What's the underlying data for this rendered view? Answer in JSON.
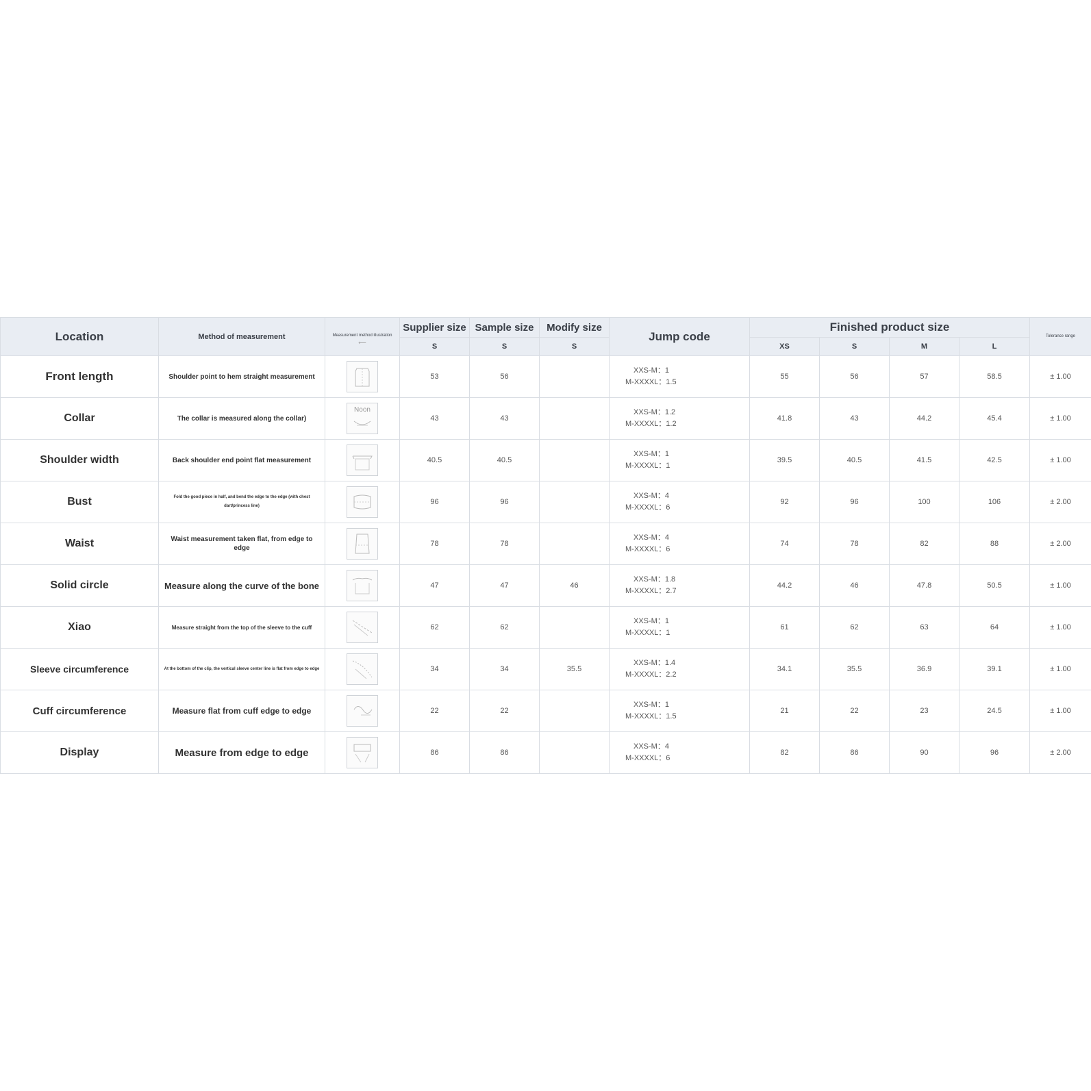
{
  "headers": {
    "location": "Location",
    "method": "Method of measurement",
    "illustration": "Measurement method illustration",
    "supplier": "Supplier size",
    "sample": "Sample size",
    "modify": "Modify size",
    "jump": "Jump code",
    "finished": "Finished product size",
    "tolerance": "Tolerance range",
    "supplier_sub": "S",
    "sample_sub": "S",
    "modify_sub": "S",
    "finished_sizes": [
      "XS",
      "S",
      "M",
      "L"
    ]
  },
  "rows": [
    {
      "location": "Front length",
      "method": "Shoulder point to hem straight measurement",
      "thumb_label": "",
      "supplier": "53",
      "sample": "56",
      "modify": "",
      "jump_a": "XXS-M：1",
      "jump_b": "M-XXXXL：1.5",
      "xs": "55",
      "s": "56",
      "m": "57",
      "l": "58.5",
      "tol": "± 1.00"
    },
    {
      "location": "Collar",
      "method": "The collar is measured along the collar)",
      "thumb_label": "Noon",
      "supplier": "43",
      "sample": "43",
      "modify": "",
      "jump_a": "XXS-M：1.2",
      "jump_b": "M-XXXXL：1.2",
      "xs": "41.8",
      "s": "43",
      "m": "44.2",
      "l": "45.4",
      "tol": "± 1.00"
    },
    {
      "location": "Shoulder width",
      "method": "Back shoulder end point flat measurement",
      "thumb_label": "",
      "supplier": "40.5",
      "sample": "40.5",
      "modify": "",
      "jump_a": "XXS-M：1",
      "jump_b": "M-XXXXL：1",
      "xs": "39.5",
      "s": "40.5",
      "m": "41.5",
      "l": "42.5",
      "tol": "± 1.00"
    },
    {
      "location": "Bust",
      "method": "Fold the good piece in half, and bend the edge to the edge (with chest dart/princess line)",
      "thumb_label": "",
      "supplier": "96",
      "sample": "96",
      "modify": "",
      "jump_a": "XXS-M：4",
      "jump_b": "M-XXXXL：6",
      "xs": "92",
      "s": "96",
      "m": "100",
      "l": "106",
      "tol": "± 2.00"
    },
    {
      "location": "Waist",
      "method": "Waist measurement taken flat, from edge to edge",
      "thumb_label": "",
      "supplier": "78",
      "sample": "78",
      "modify": "",
      "jump_a": "XXS-M：4",
      "jump_b": "M-XXXXL：6",
      "xs": "74",
      "s": "78",
      "m": "82",
      "l": "88",
      "tol": "± 2.00"
    },
    {
      "location": "Solid circle",
      "method": "Measure along the curve of the bone",
      "thumb_label": "",
      "supplier": "47",
      "sample": "47",
      "modify": "46",
      "jump_a": "XXS-M：1.8",
      "jump_b": "M-XXXXL：2.7",
      "xs": "44.2",
      "s": "46",
      "m": "47.8",
      "l": "50.5",
      "tol": "± 1.00"
    },
    {
      "location": "Xiao",
      "method": "Measure straight from the top of the sleeve to the cuff",
      "thumb_label": "",
      "supplier": "62",
      "sample": "62",
      "modify": "",
      "jump_a": "XXS-M：1",
      "jump_b": "M-XXXXL：1",
      "xs": "61",
      "s": "62",
      "m": "63",
      "l": "64",
      "tol": "± 1.00"
    },
    {
      "location": "Sleeve circumference",
      "method": "At the bottom of the clip, the vertical sleeve center line is flat from edge to edge",
      "thumb_label": "",
      "supplier": "34",
      "sample": "34",
      "modify": "35.5",
      "jump_a": "XXS-M：1.4",
      "jump_b": "M-XXXXL：2.2",
      "xs": "34.1",
      "s": "35.5",
      "m": "36.9",
      "l": "39.1",
      "tol": "± 1.00"
    },
    {
      "location": "Cuff circumference",
      "method": "Measure flat from cuff edge to edge",
      "thumb_label": "",
      "supplier": "22",
      "sample": "22",
      "modify": "",
      "jump_a": "XXS-M：1",
      "jump_b": "M-XXXXL：1.5",
      "xs": "21",
      "s": "22",
      "m": "23",
      "l": "24.5",
      "tol": "± 1.00"
    },
    {
      "location": "Display",
      "method": "Measure from edge to edge",
      "thumb_label": "",
      "supplier": "86",
      "sample": "86",
      "modify": "",
      "jump_a": "XXS-M：4",
      "jump_b": "M-XXXXL：6",
      "xs": "82",
      "s": "86",
      "m": "90",
      "l": "96",
      "tol": "± 2.00"
    }
  ],
  "colors": {
    "header_bg": "#e9edf3",
    "border": "#d9dde3",
    "text": "#333333"
  }
}
